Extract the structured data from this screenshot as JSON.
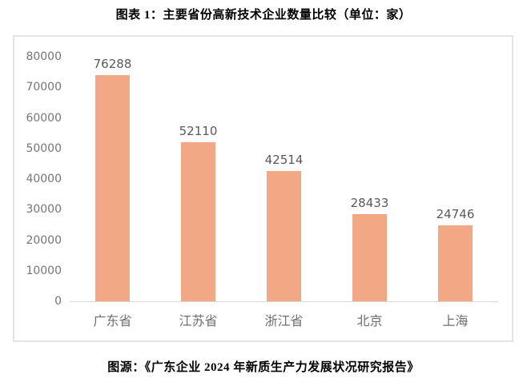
{
  "title": "图表 1：主要省份高新技术企业数量比较（单位：家）",
  "source": "图源：《广东企业 2024 年新质生产力发展状况研究报告》",
  "colors": {
    "bar": "#F2A884",
    "axis_line": "#D9D9D9",
    "panel_border": "#E4E4E4",
    "tick_label": "#757575",
    "value_label": "#595959",
    "category_label": "#6E6E6E"
  },
  "chart_data": {
    "type": "bar",
    "categories": [
      "广东省",
      "江苏省",
      "浙江省",
      "北京",
      "上海"
    ],
    "values": [
      76288,
      52110,
      42514,
      28433,
      24746
    ],
    "title": "图表 1：主要省份高新技术企业数量比较（单位：家）",
    "xlabel": "",
    "ylabel": "",
    "ylim": [
      0,
      80000
    ],
    "yticks": [
      0,
      10000,
      20000,
      30000,
      40000,
      50000,
      60000,
      70000,
      80000
    ],
    "grid": false,
    "legend": "none",
    "data_labels": true,
    "source_note": "图源：《广东企业 2024 年新质生产力发展状况研究报告》"
  }
}
